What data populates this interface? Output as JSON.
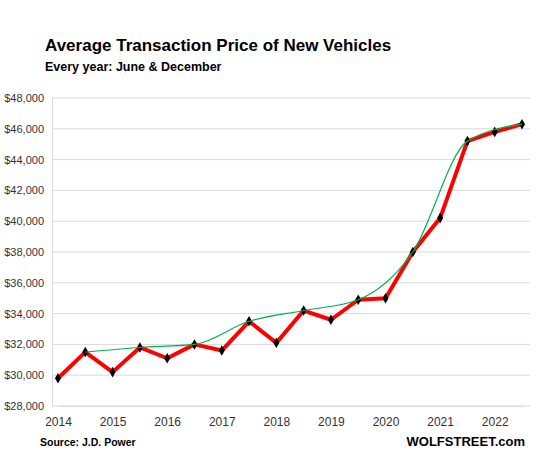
{
  "chart_data": {
    "type": "line",
    "title": "Average Transaction Price of New Vehicles",
    "subtitle": "Every year: June & December",
    "source": "Source: J.D. Power",
    "credit": "WOLFSTREET.com",
    "series": [
      {
        "x": [
          2014,
          2014.5,
          2015,
          2015.5,
          2016,
          2016.5,
          2017,
          2017.5,
          2018,
          2018.5,
          2019,
          2019.5,
          2020,
          2020.5,
          2021,
          2021.5,
          2022,
          2022.5
        ],
        "values": [
          29800,
          31500,
          30200,
          31800,
          31100,
          32000,
          31600,
          33500,
          32100,
          34200,
          33600,
          34900,
          35000,
          38000,
          40200,
          45200,
          45800,
          46300
        ],
        "color": "#ff0000",
        "marker": "diamond",
        "line_style": "solid"
      },
      {
        "x": [
          2014.5,
          2015.5,
          2016.5,
          2017.5,
          2018.5,
          2019.5,
          2020.5,
          2021.5,
          2022.5
        ],
        "values": [
          31500,
          31800,
          32000,
          33500,
          34200,
          34900,
          38000,
          45200,
          46300
        ],
        "color": "#00b050",
        "line_style": "smooth"
      }
    ],
    "xlim": [
      2014,
      2022.5
    ],
    "xticks": [
      2014,
      2015,
      2016,
      2017,
      2018,
      2019,
      2020,
      2021,
      2022
    ],
    "ylim": [
      28000,
      48000
    ],
    "yticks": [
      {
        "value": 28000,
        "label": "$28,000"
      },
      {
        "value": 30000,
        "label": "$30,000"
      },
      {
        "value": 32000,
        "label": "$32,000"
      },
      {
        "value": 34000,
        "label": "$34,000"
      },
      {
        "value": 36000,
        "label": "$36,000"
      },
      {
        "value": 38000,
        "label": "$38,000"
      },
      {
        "value": 40000,
        "label": "$40,000"
      },
      {
        "value": 42000,
        "label": "$42,000"
      },
      {
        "value": 44000,
        "label": "$44,000"
      },
      {
        "value": 46000,
        "label": "$46,000"
      },
      {
        "value": 48000,
        "label": "$48,000"
      }
    ],
    "grid": true
  }
}
